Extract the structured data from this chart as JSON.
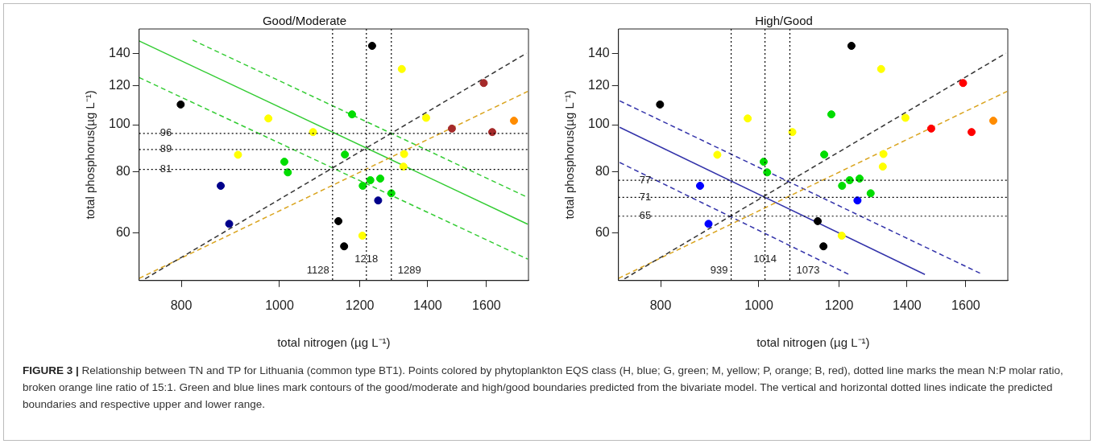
{
  "chart_data": [
    {
      "type": "scatter",
      "title": "Good/Moderate",
      "xlabel": "total nitrogen (µg L⁻¹)",
      "ylabel": "total phosphorus(µg L⁻¹)",
      "log": "xy",
      "grid": false,
      "marker": "circle",
      "xlim": [
        727,
        1760
      ],
      "ylim": [
        48,
        157
      ],
      "xticks": [
        800,
        1000,
        1200,
        1400,
        1600
      ],
      "yticks": [
        60,
        80,
        100,
        120,
        140
      ],
      "series": [
        {
          "color": "#000000",
          "x": [
            799,
            1234,
            1143,
            1158
          ],
          "values": [
            110,
            145,
            63.5,
            56.4
          ]
        },
        {
          "color": "#ffff00",
          "x": [
            1320,
            975,
            1079,
            910,
            1395,
            1327,
            1325,
            1207
          ],
          "values": [
            130,
            103,
            96.6,
            86.8,
            103.3,
            87.1,
            82.1,
            59.3
          ]
        },
        {
          "color": "#00dd00",
          "x": [
            1179,
            1160,
            1011,
            1019,
            1229,
            1257,
            1208,
            1289
          ],
          "values": [
            105,
            86.9,
            84,
            79.9,
            77,
            77.6,
            75,
            72.4
          ]
        },
        {
          "color": "#00008b",
          "x": [
            875,
            892,
            1251
          ],
          "values": [
            75,
            62.7,
            70
          ]
        },
        {
          "color": "#a52a2a",
          "x": [
            1590,
            1479,
            1621
          ],
          "values": [
            121.7,
            98.2,
            96.6
          ]
        },
        {
          "color": "#ff8c00",
          "x": [
            1703
          ],
          "values": [
            101.9
          ]
        },
        {
          "type": "line",
          "marker": "none",
          "line_style": "dashed",
          "color": "#333333",
          "x": [
            737,
            1752
          ],
          "values": [
            48.4,
            140
          ]
        },
        {
          "type": "line",
          "marker": "none",
          "line_style": "dashed",
          "color": "#daa520",
          "x": [
            727,
            1757
          ],
          "values": [
            48.5,
            117
          ]
        },
        {
          "type": "line",
          "marker": "none",
          "line_style": "solid",
          "color": "#33cc33",
          "x": [
            727,
            1757
          ],
          "values": [
            148.4,
            62.6
          ]
        },
        {
          "type": "line",
          "marker": "none",
          "line_style": "dashed",
          "color": "#33cc33",
          "x": [
            821,
            1757
          ],
          "values": [
            149,
            71
          ]
        },
        {
          "type": "line",
          "marker": "none",
          "line_style": "dashed",
          "color": "#33cc33",
          "x": [
            727,
            1757
          ],
          "values": [
            124.9,
            53.1
          ]
        }
      ],
      "ref_lines": [
        {
          "axis": "x",
          "value": 1128,
          "label": "1128",
          "color": "#000000",
          "line_style": "dotted"
        },
        {
          "axis": "x",
          "value": 1218,
          "label": "1218",
          "color": "#000000",
          "line_style": "dotted"
        },
        {
          "axis": "x",
          "value": 1289,
          "label": "1289",
          "color": "#000000",
          "line_style": "dotted"
        },
        {
          "axis": "y",
          "value": 96,
          "label": "96",
          "color": "#000000",
          "line_style": "dotted"
        },
        {
          "axis": "y",
          "value": 89,
          "label": "89",
          "color": "#000000",
          "line_style": "dotted"
        },
        {
          "axis": "y",
          "value": 81,
          "label": "81",
          "color": "#000000",
          "line_style": "dotted"
        }
      ],
      "annotations": [
        "FIGURE 3 |",
        "Relationship between TN and TP for Lithuania (common type BT1). Points colored by phytoplankton EQS class (H, blue; G, green; M, yellow; P, orange; B, red), dotted line marks the mean N:P molar ratio, broken orange line ratio of 15:1. Green and blue lines mark contours of the good/moderate and high/good boundaries predicted from the bivariate model. The vertical and horizontal dotted lines indicate the predicted boundaries and respective upper and lower range."
      ]
    },
    {
      "type": "scatter",
      "title": "High/Good",
      "xlabel": "total nitrogen (µg L⁻¹)",
      "ylabel": "total phosphorus(µg L⁻¹)",
      "log": "xy",
      "grid": false,
      "marker": "circle",
      "xlim": [
        727,
        1760
      ],
      "ylim": [
        48,
        157
      ],
      "xticks": [
        800,
        1000,
        1200,
        1400,
        1600
      ],
      "yticks": [
        60,
        80,
        100,
        120,
        140
      ],
      "series": [
        {
          "color": "#000000",
          "x": [
            799,
            1234,
            1143,
            1158
          ],
          "values": [
            110,
            145,
            63.5,
            56.4
          ]
        },
        {
          "color": "#ffff00",
          "x": [
            1320,
            975,
            1079,
            910,
            1395,
            1327,
            1325,
            1207
          ],
          "values": [
            130,
            103,
            96.6,
            86.8,
            103.3,
            87.1,
            82.1,
            59.3
          ]
        },
        {
          "color": "#00dd00",
          "x": [
            1179,
            1160,
            1011,
            1019,
            1229,
            1257,
            1208,
            1289
          ],
          "values": [
            105,
            86.9,
            84,
            79.9,
            77,
            77.6,
            75,
            72.4
          ]
        },
        {
          "color": "#0000ff",
          "x": [
            875,
            892,
            1251
          ],
          "values": [
            75,
            62.7,
            70
          ]
        },
        {
          "color": "#ff0000",
          "x": [
            1590,
            1479,
            1621
          ],
          "values": [
            121.7,
            98.2,
            96.6
          ]
        },
        {
          "color": "#ff8c00",
          "x": [
            1703
          ],
          "values": [
            101.9
          ]
        },
        {
          "type": "line",
          "marker": "none",
          "line_style": "dashed",
          "color": "#333333",
          "x": [
            737,
            1752
          ],
          "values": [
            48.4,
            140
          ]
        },
        {
          "type": "line",
          "marker": "none",
          "line_style": "dashed",
          "color": "#daa520",
          "x": [
            727,
            1757
          ],
          "values": [
            48.5,
            117
          ]
        },
        {
          "type": "line",
          "marker": "none",
          "line_style": "solid",
          "color": "#3333aa",
          "x": [
            729,
            1458
          ],
          "values": [
            98.8,
            49.4
          ]
        },
        {
          "type": "line",
          "marker": "none",
          "line_style": "dashed",
          "color": "#3333aa",
          "x": [
            729,
            1662
          ],
          "values": [
            111.9,
            49.4
          ]
        },
        {
          "type": "line",
          "marker": "none",
          "line_style": "dashed",
          "color": "#3333aa",
          "x": [
            729,
            1227
          ],
          "values": [
            83.7,
            49.4
          ]
        }
      ],
      "ref_lines": [
        {
          "axis": "x",
          "value": 939,
          "label": "939",
          "color": "#000000",
          "line_style": "dotted"
        },
        {
          "axis": "x",
          "value": 1014,
          "label": "1014",
          "color": "#000000",
          "line_style": "dotted"
        },
        {
          "axis": "x",
          "value": 1073,
          "label": "1073",
          "color": "#000000",
          "line_style": "dotted"
        },
        {
          "axis": "y",
          "value": 77,
          "label": "77",
          "color": "#000000",
          "line_style": "dotted"
        },
        {
          "axis": "y",
          "value": 71,
          "label": "71",
          "color": "#000000",
          "line_style": "dotted"
        },
        {
          "axis": "y",
          "value": 65,
          "label": "65",
          "color": "#000000",
          "line_style": "dotted"
        }
      ]
    }
  ]
}
